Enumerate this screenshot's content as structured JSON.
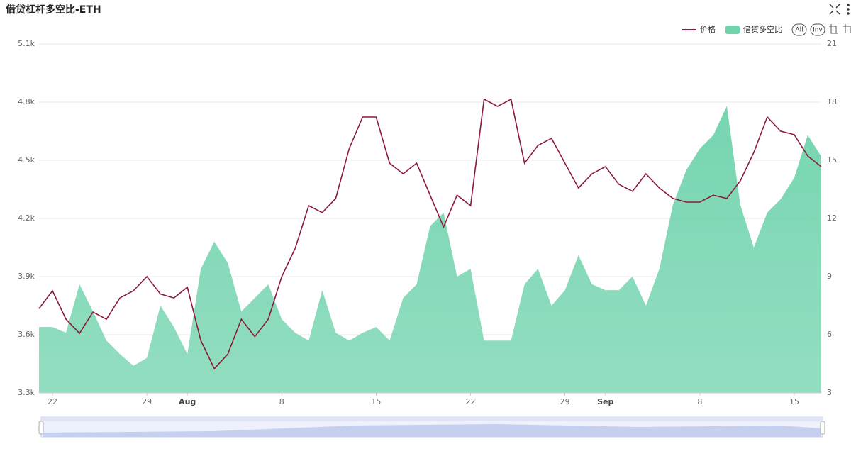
{
  "chart_data": {
    "type": "line",
    "title": "借贷杠杆多空比-ETH",
    "categories": [
      null,
      "22",
      null,
      null,
      null,
      null,
      null,
      null,
      "29",
      null,
      null,
      "Aug",
      null,
      null,
      null,
      null,
      null,
      null,
      "8",
      null,
      null,
      null,
      null,
      null,
      null,
      "15",
      null,
      null,
      null,
      null,
      null,
      null,
      "22",
      null,
      null,
      null,
      null,
      null,
      null,
      "29",
      null,
      null,
      "Sep",
      null,
      null,
      null,
      null,
      null,
      null,
      "8",
      null,
      null,
      null,
      null,
      null,
      null,
      "15",
      null,
      null
    ],
    "series": [
      {
        "name": "价格",
        "type": "line",
        "axis": "y",
        "color": "#8b1a3a",
        "values": [
          3735,
          3827,
          3680,
          3607,
          3717,
          3680,
          3790,
          3827,
          3900,
          3810,
          3790,
          3845,
          3570,
          3425,
          3500,
          3680,
          3590,
          3680,
          3900,
          4046,
          4266,
          4230,
          4303,
          4560,
          4723,
          4723,
          4485,
          4430,
          4485,
          4320,
          4156,
          4320,
          4266,
          4815,
          4778,
          4815,
          4485,
          4577,
          4613,
          4485,
          4357,
          4430,
          4467,
          4376,
          4340,
          4430,
          4357,
          4303,
          4284,
          4284,
          4320,
          4303,
          4394,
          4540,
          4723,
          4650,
          4632,
          4522,
          4467
        ]
      },
      {
        "name": "借贷多空比",
        "type": "area",
        "axis": "y2",
        "color": "#6fd3ac",
        "values": [
          6.4,
          6.4,
          6.1,
          8.6,
          7.2,
          5.7,
          5.0,
          4.4,
          4.8,
          7.5,
          6.4,
          5.0,
          9.4,
          10.8,
          9.7,
          7.2,
          7.9,
          8.6,
          6.8,
          6.1,
          5.7,
          8.3,
          6.1,
          5.7,
          6.1,
          6.4,
          5.7,
          7.9,
          8.6,
          11.6,
          12.3,
          9.0,
          9.4,
          5.7,
          5.7,
          5.7,
          8.6,
          9.4,
          7.5,
          8.3,
          10.1,
          8.6,
          8.3,
          8.3,
          9.0,
          7.5,
          9.4,
          12.7,
          14.5,
          15.6,
          16.3,
          17.8,
          12.7,
          10.5,
          12.3,
          13.0,
          14.1,
          16.3,
          15.2
        ]
      }
    ],
    "ylim": [
      3300,
      5100
    ],
    "yticks": [
      {
        "value": 3300,
        "label": "3.3k"
      },
      {
        "value": 3600,
        "label": "3.6k"
      },
      {
        "value": 3900,
        "label": "3.9k"
      },
      {
        "value": 4200,
        "label": "4.2k"
      },
      {
        "value": 4500,
        "label": "4.5k"
      },
      {
        "value": 4800,
        "label": "4.8k"
      },
      {
        "value": 5100,
        "label": "5.1k"
      }
    ],
    "y2lim": [
      3,
      21
    ],
    "y2ticks": [
      3,
      6,
      9,
      12,
      15,
      18,
      21
    ],
    "grid": true,
    "legend": "top-right",
    "buttons": [
      "All",
      "Inv"
    ]
  }
}
